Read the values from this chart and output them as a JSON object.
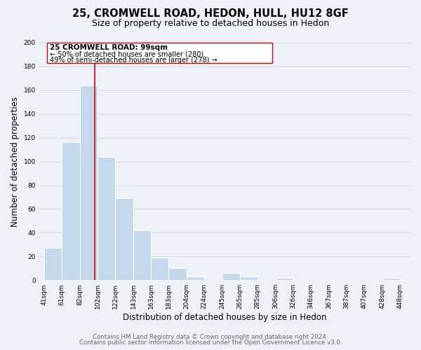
{
  "title_line1": "25, CROMWELL ROAD, HEDON, HULL, HU12 8GF",
  "title_line2": "Size of property relative to detached houses in Hedon",
  "xlabel": "Distribution of detached houses by size in Hedon",
  "ylabel": "Number of detached properties",
  "bar_left_edges": [
    41,
    61,
    82,
    102,
    122,
    143,
    163,
    183,
    204,
    224,
    245,
    265,
    285,
    306,
    326,
    346,
    367,
    387,
    407,
    428
  ],
  "bar_heights": [
    27,
    116,
    164,
    104,
    69,
    42,
    19,
    10,
    3,
    0,
    6,
    3,
    0,
    2,
    0,
    0,
    0,
    0,
    0,
    2
  ],
  "bar_widths": [
    20,
    21,
    20,
    20,
    21,
    20,
    20,
    21,
    20,
    21,
    20,
    20,
    21,
    20,
    20,
    21,
    20,
    20,
    21,
    20
  ],
  "bar_color": "#c5d9ec",
  "bar_edge_color": "#ffffff",
  "bar_linewidth": 0.8,
  "x_tick_labels": [
    "41sqm",
    "61sqm",
    "82sqm",
    "102sqm",
    "122sqm",
    "143sqm",
    "163sqm",
    "183sqm",
    "204sqm",
    "224sqm",
    "245sqm",
    "265sqm",
    "285sqm",
    "306sqm",
    "326sqm",
    "346sqm",
    "367sqm",
    "387sqm",
    "407sqm",
    "428sqm",
    "448sqm"
  ],
  "x_tick_positions": [
    41,
    61,
    82,
    102,
    122,
    143,
    163,
    183,
    204,
    224,
    245,
    265,
    285,
    306,
    326,
    346,
    367,
    387,
    407,
    428,
    448
  ],
  "ylim": [
    0,
    200
  ],
  "xlim": [
    35,
    460
  ],
  "yticks": [
    0,
    20,
    40,
    60,
    80,
    100,
    120,
    140,
    160,
    180,
    200
  ],
  "vline_x": 99,
  "vline_color": "#cc0000",
  "annotation_line1": "25 CROMWELL ROAD: 99sqm",
  "annotation_line2": "← 50% of detached houses are smaller (280)",
  "annotation_line3": "49% of semi-detached houses are larger (278) →",
  "annotation_box_color": "#ffffff",
  "annotation_box_edge_color": "#cc0000",
  "grid_color": "#d0d8e8",
  "background_color": "#eef2f8",
  "footer_line1": "Contains HM Land Registry data © Crown copyright and database right 2024.",
  "footer_line2": "Contains public sector information licensed under the Open Government Licence v3.0.",
  "title_fontsize": 10.5,
  "subtitle_fontsize": 9,
  "axis_label_fontsize": 8.5,
  "tick_label_fontsize": 6.5,
  "annotation_fontsize": 7.5,
  "footer_fontsize": 6.2
}
